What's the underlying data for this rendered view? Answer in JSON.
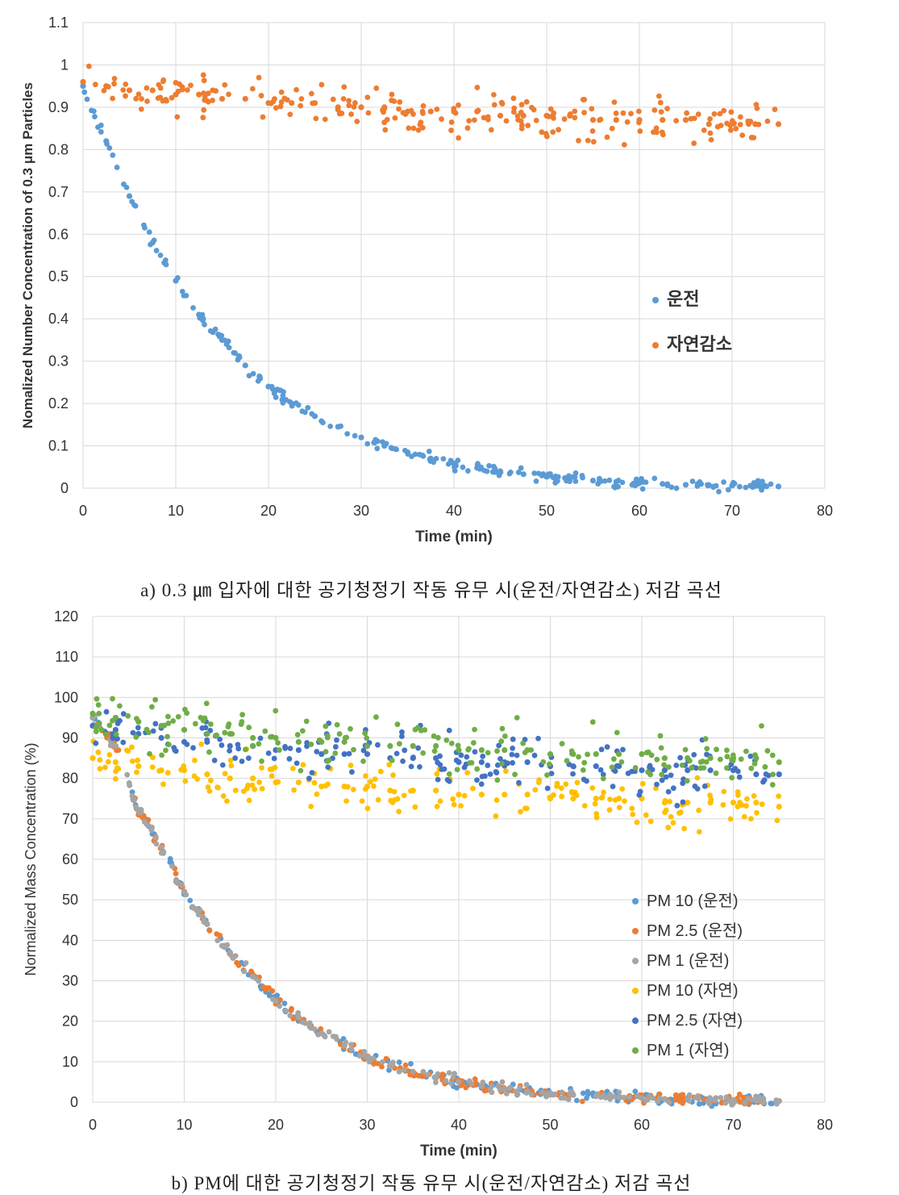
{
  "chart_data": [
    {
      "type": "scatter",
      "title": "",
      "xlabel": "Time (min)",
      "ylabel": "Nomalized Number Concentration of 0.3 μm Particles",
      "xlim": [
        0,
        80
      ],
      "ylim": [
        0,
        1.1
      ],
      "xticks": [
        0,
        10,
        20,
        30,
        40,
        50,
        60,
        70,
        80
      ],
      "yticks": [
        0,
        0.1,
        0.2,
        0.3,
        0.4,
        0.5,
        0.6,
        0.7,
        0.8,
        0.9,
        1,
        1.1
      ],
      "grid": true,
      "legend_position": "center-right",
      "x": [
        0,
        2.5,
        5,
        7.5,
        10,
        12.5,
        15,
        17.5,
        20,
        22.5,
        25,
        27.5,
        30,
        32.5,
        35,
        37.5,
        40,
        42.5,
        45,
        47.5,
        50,
        52.5,
        55,
        57.5,
        60,
        62.5,
        65,
        67.5,
        70,
        72.5,
        75
      ],
      "series": [
        {
          "name": "운전",
          "color": "#5b9bd5",
          "values": [
            0.95,
            0.82,
            0.69,
            0.58,
            0.49,
            0.41,
            0.35,
            0.29,
            0.24,
            0.2,
            0.17,
            0.145,
            0.12,
            0.1,
            0.085,
            0.07,
            0.058,
            0.048,
            0.04,
            0.033,
            0.027,
            0.022,
            0.018,
            0.015,
            0.012,
            0.01,
            0.008,
            0.007,
            0.006,
            0.005,
            0.004
          ]
        },
        {
          "name": "자연감소",
          "color": "#ed7d31",
          "values": [
            0.96,
            0.95,
            0.94,
            0.94,
            0.93,
            0.93,
            0.92,
            0.92,
            0.91,
            0.91,
            0.91,
            0.9,
            0.9,
            0.9,
            0.89,
            0.89,
            0.89,
            0.89,
            0.88,
            0.88,
            0.88,
            0.88,
            0.87,
            0.87,
            0.87,
            0.87,
            0.87,
            0.86,
            0.86,
            0.86,
            0.86
          ]
        }
      ]
    },
    {
      "type": "scatter",
      "title": "",
      "xlabel": "Time (min)",
      "ylabel": "Normalized Mass Concentration (%)",
      "xlim": [
        0,
        80
      ],
      "ylim": [
        0,
        120
      ],
      "xticks": [
        0,
        10,
        20,
        30,
        40,
        50,
        60,
        70,
        80
      ],
      "yticks": [
        0,
        10,
        20,
        30,
        40,
        50,
        60,
        70,
        80,
        90,
        100,
        110,
        120
      ],
      "grid": true,
      "legend_position": "bottom-right",
      "x": [
        0,
        2.5,
        5,
        7.5,
        10,
        12.5,
        15,
        17.5,
        20,
        22.5,
        25,
        27.5,
        30,
        32.5,
        35,
        37.5,
        40,
        42.5,
        45,
        47.5,
        50,
        52.5,
        55,
        57.5,
        60,
        62.5,
        65,
        67.5,
        70,
        72.5,
        75
      ],
      "series": [
        {
          "name": "PM 10 (운전)",
          "color": "#5b9bd5",
          "values": [
            95,
            88,
            72,
            63,
            52,
            44,
            37,
            31,
            25,
            21,
            17,
            14,
            11,
            9,
            7.5,
            6,
            5,
            4,
            3.3,
            2.7,
            2.2,
            1.8,
            1.5,
            1.2,
            1,
            0.8,
            0.7,
            0.6,
            0.5,
            0.4,
            0.3
          ]
        },
        {
          "name": "PM 2.5 (운전)",
          "color": "#ed7d31",
          "values": [
            95,
            88,
            72,
            63,
            52,
            44,
            37,
            31,
            25,
            21,
            17,
            14,
            11,
            9,
            7.5,
            6,
            5,
            4,
            3.3,
            2.7,
            2.2,
            1.8,
            1.5,
            1.2,
            1,
            0.8,
            0.7,
            0.6,
            0.5,
            0.4,
            0.3
          ]
        },
        {
          "name": "PM 1 (운전)",
          "color": "#a5a5a5",
          "values": [
            95,
            88,
            72,
            63,
            52,
            44,
            37,
            31,
            25,
            21,
            17,
            14,
            11,
            9,
            7.5,
            6,
            5,
            4,
            3.3,
            2.7,
            2.2,
            1.8,
            1.5,
            1.2,
            1,
            0.8,
            0.7,
            0.6,
            0.5,
            0.4,
            0.3
          ]
        },
        {
          "name": "PM 10 (자연)",
          "color": "#ffc000",
          "values": [
            85,
            84,
            83,
            82,
            82,
            81,
            80,
            80,
            79,
            79,
            78,
            78,
            78,
            77,
            77,
            77,
            76,
            76,
            76,
            76,
            75,
            75,
            75,
            75,
            75,
            74,
            74,
            74,
            74,
            74,
            73
          ]
        },
        {
          "name": "PM 2.5 (자연)",
          "color": "#4472c4",
          "values": [
            93,
            92,
            91,
            90,
            89,
            89,
            88,
            88,
            87,
            87,
            86,
            86,
            86,
            85,
            85,
            85,
            84,
            84,
            84,
            84,
            83,
            83,
            83,
            83,
            82,
            82,
            82,
            82,
            82,
            81,
            81
          ]
        },
        {
          "name": "PM 1 (자연)",
          "color": "#70ad47",
          "values": [
            96,
            95,
            94,
            93,
            92,
            91,
            91,
            90,
            90,
            89,
            89,
            89,
            88,
            88,
            88,
            88,
            87,
            87,
            87,
            87,
            86,
            86,
            86,
            86,
            86,
            85,
            85,
            85,
            85,
            85,
            84
          ]
        }
      ]
    }
  ],
  "captions": {
    "a": "a) 0.3 ㎛ 입자에 대한 공기청정기 작동 유무 시(운전/자연감소) 저감 곡선",
    "b": "b) PM에 대한 공기청정기 작동 유무 시(운전/자연감소) 저감 곡선"
  }
}
